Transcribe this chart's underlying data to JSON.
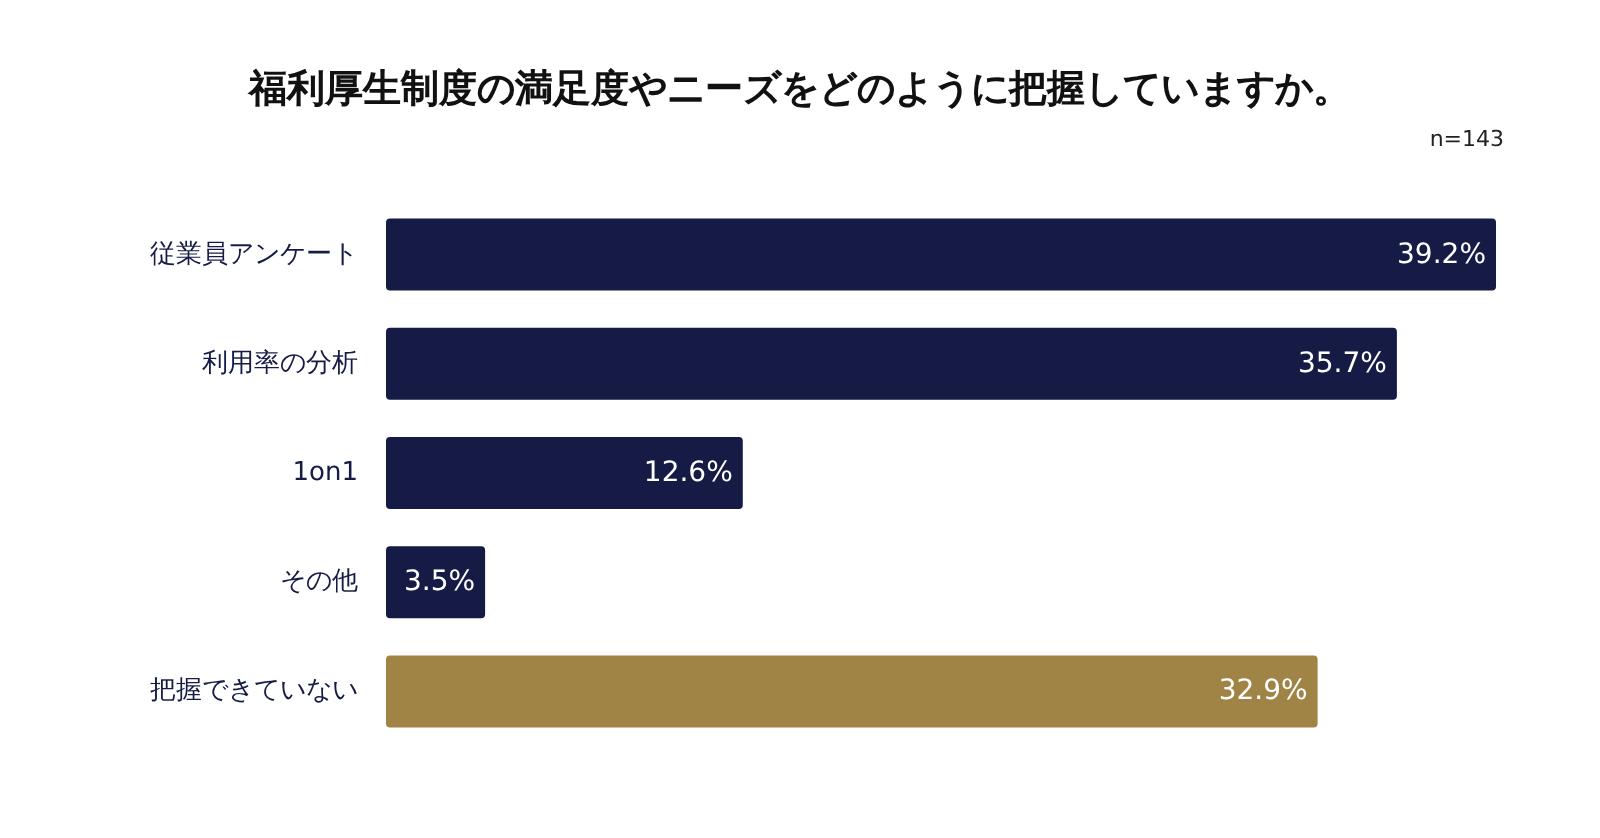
{
  "chart_data": {
    "type": "bar",
    "orientation": "horizontal",
    "title": "福利厚生制度の満足度やニーズをどのように把握していますか。",
    "annotations": [
      "n=143"
    ],
    "categories": [
      "従業員アンケート",
      "利用率の分析",
      "1on1",
      "その他",
      "把握できていない"
    ],
    "values": [
      39.2,
      35.7,
      12.6,
      3.5,
      32.9
    ],
    "colors": [
      "#151b45",
      "#151b45",
      "#151b45",
      "#151b45",
      "#a08446"
    ],
    "value_labels": [
      "39.2%",
      "35.7%",
      "12.6%",
      "3.5%",
      "32.9%"
    ]
  }
}
